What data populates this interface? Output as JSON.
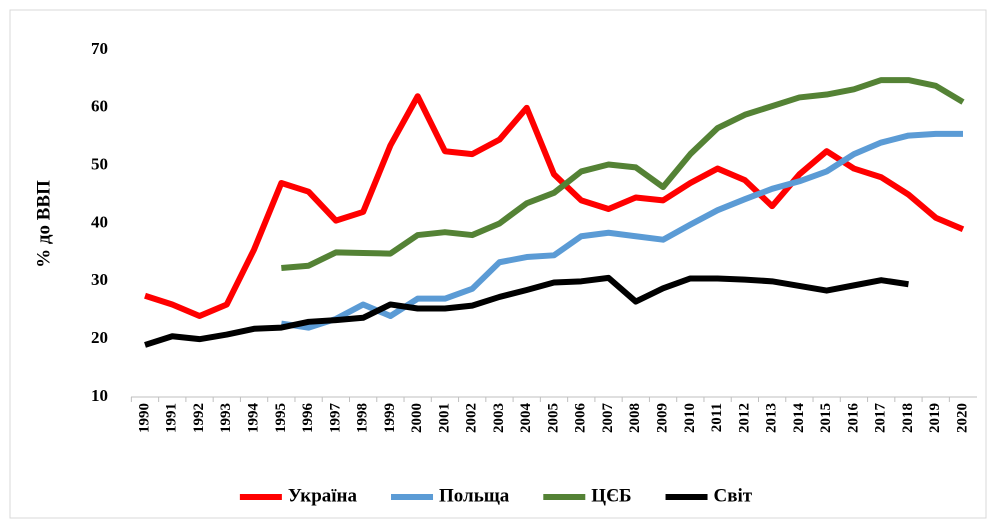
{
  "chart_data": {
    "type": "line",
    "y_label": "% до ВВП",
    "categories": [
      "1990",
      "1991",
      "1992",
      "1993",
      "1994",
      "1995",
      "1996",
      "1997",
      "1998",
      "1999",
      "2000",
      "2001",
      "2002",
      "2003",
      "2004",
      "2005",
      "2006",
      "2007",
      "2008",
      "2009",
      "2010",
      "2011",
      "2012",
      "2013",
      "2014",
      "2015",
      "2016",
      "2017",
      "2018",
      "2019",
      "2020"
    ],
    "series": [
      {
        "name": "Україна",
        "color": "#ff0000",
        "values": [
          27.5,
          26,
          24,
          26,
          35.5,
          47,
          45.5,
          40.5,
          42,
          53.5,
          62,
          52.5,
          52,
          54.5,
          60,
          48.5,
          44,
          42.5,
          44.5,
          44,
          47,
          49.5,
          47.5,
          43,
          48.5,
          52.5,
          49.5,
          48,
          45,
          41,
          39
        ]
      },
      {
        "name": "Польща",
        "color": "#5b9bd5",
        "values": [
          null,
          null,
          null,
          null,
          null,
          22.7,
          22,
          23.5,
          26,
          24,
          27,
          27,
          28.7,
          33.3,
          34.2,
          34.5,
          37.8,
          38.4,
          37.8,
          37.2,
          39.8,
          42.3,
          44.2,
          46,
          47.3,
          49,
          52,
          54,
          55.2,
          55.5,
          55.5
        ]
      },
      {
        "name": "ЦЄБ",
        "color": "#548235",
        "values": [
          null,
          null,
          null,
          null,
          null,
          32.3,
          32.7,
          35,
          34.9,
          34.8,
          38,
          38.5,
          38,
          40,
          43.5,
          45.3,
          49,
          50.2,
          49.7,
          46.3,
          52,
          56.5,
          58.8,
          60.3,
          61.8,
          62.3,
          63.2,
          64.8,
          64.8,
          63.8,
          61
        ]
      },
      {
        "name": "Світ",
        "color": "#000000",
        "values": [
          19,
          20.5,
          20,
          20.8,
          21.8,
          22,
          23,
          23.3,
          23.7,
          26,
          25.3,
          25.3,
          25.8,
          27.3,
          28.5,
          29.8,
          30,
          30.6,
          26.5,
          28.8,
          30.5,
          30.5,
          30.3,
          30,
          29.2,
          28.4,
          29.3,
          30.2,
          29.5,
          null,
          null
        ]
      }
    ],
    "ylim": [
      10,
      70
    ],
    "yticks": [
      10,
      20,
      30,
      40,
      50,
      60,
      70
    ],
    "grid": false,
    "legend": "bottom"
  }
}
